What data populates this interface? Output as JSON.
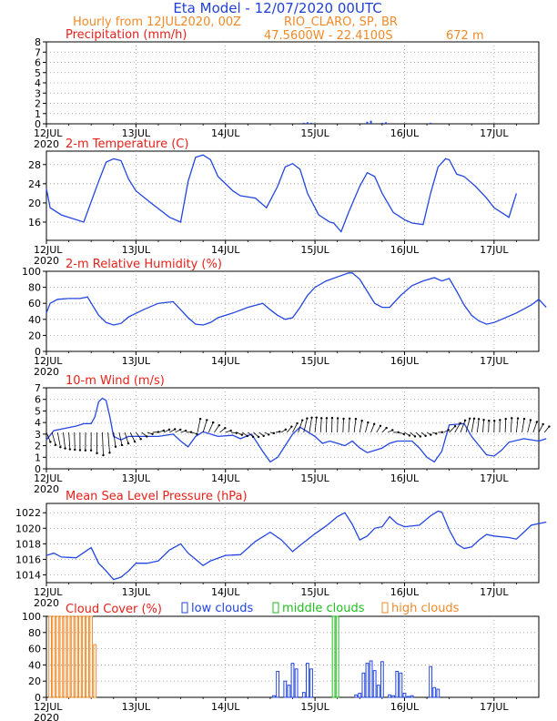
{
  "header": {
    "title": "Eta Model - 12/07/2020 00UTC",
    "subtitle_left": "Hourly from 12JUL2020, 00Z",
    "location": "RIO_CLARO, SP, BR",
    "coords": "47.5600W - 22.4100S",
    "altitude": "672  m"
  },
  "colors": {
    "title": "#1f3fd6",
    "orange": "#f08a28",
    "red": "#e8201a",
    "blue": "#2346e0",
    "green": "#1fbf1f",
    "black": "#000000",
    "grid": "#9a9a9a"
  },
  "x_axis": {
    "ticks": [
      "12JUL",
      "13JUL",
      "14JUL",
      "15JUL",
      "16JUL",
      "17JUL"
    ],
    "tick_hours": [
      0,
      24,
      48,
      72,
      96,
      120
    ],
    "range_hours": [
      0,
      132
    ],
    "year": "2020"
  },
  "chart_data": [
    {
      "id": "precip",
      "type": "bar",
      "title": "Precipitation (mm/h)",
      "ylim": [
        0,
        8
      ],
      "yticks": [
        0,
        1,
        2,
        3,
        4,
        5,
        6,
        7,
        8
      ],
      "hours": [
        69,
        70,
        71,
        86,
        87,
        90,
        91,
        103
      ],
      "values": [
        0.1,
        0.15,
        0.1,
        0.2,
        0.3,
        0.1,
        0.15,
        0.1
      ]
    },
    {
      "id": "temperature",
      "type": "line",
      "title": "2-m Temperature (C)",
      "ylim": [
        12.2,
        30.8
      ],
      "yticks": [
        16,
        20,
        24,
        28
      ],
      "points": [
        [
          0,
          23
        ],
        [
          1,
          19
        ],
        [
          4,
          17.5
        ],
        [
          10,
          16
        ],
        [
          14,
          24.5
        ],
        [
          16,
          28.5
        ],
        [
          18,
          29.2
        ],
        [
          20,
          28.8
        ],
        [
          22,
          25
        ],
        [
          24,
          22.5
        ],
        [
          28,
          20
        ],
        [
          33,
          17
        ],
        [
          36,
          16
        ],
        [
          38,
          24.5
        ],
        [
          40,
          29.5
        ],
        [
          42,
          30
        ],
        [
          44,
          29
        ],
        [
          46,
          25.5
        ],
        [
          50,
          22.5
        ],
        [
          52,
          21.5
        ],
        [
          56,
          21
        ],
        [
          59,
          19
        ],
        [
          62,
          23.5
        ],
        [
          64,
          27.5
        ],
        [
          66,
          28.2
        ],
        [
          68,
          27
        ],
        [
          70,
          22
        ],
        [
          73,
          17.5
        ],
        [
          76,
          16
        ],
        [
          77,
          15.8
        ],
        [
          79,
          14
        ],
        [
          81,
          18
        ],
        [
          84,
          23.5
        ],
        [
          86,
          26.3
        ],
        [
          88,
          25.5
        ],
        [
          90,
          22
        ],
        [
          93,
          18
        ],
        [
          96,
          16.5
        ],
        [
          98,
          15.8
        ],
        [
          101,
          15.5
        ],
        [
          103,
          22
        ],
        [
          105,
          27.5
        ],
        [
          107,
          29.2
        ],
        [
          108,
          29
        ],
        [
          110,
          26
        ],
        [
          112,
          25.5
        ],
        [
          115,
          23.5
        ],
        [
          118,
          21
        ],
        [
          120,
          19
        ],
        [
          124,
          17
        ],
        [
          126,
          22
        ]
      ]
    },
    {
      "id": "humidity",
      "type": "line",
      "title": "2-m Relative Humidity (%)",
      "ylim": [
        0,
        100
      ],
      "yticks": [
        0,
        20,
        40,
        60,
        80,
        100
      ],
      "points": [
        [
          0,
          48
        ],
        [
          1,
          60
        ],
        [
          3,
          65
        ],
        [
          6,
          66
        ],
        [
          9,
          66
        ],
        [
          11,
          68
        ],
        [
          14,
          45
        ],
        [
          16,
          36
        ],
        [
          18,
          33
        ],
        [
          20,
          35
        ],
        [
          22,
          43
        ],
        [
          26,
          52
        ],
        [
          30,
          60
        ],
        [
          34,
          62
        ],
        [
          36,
          52
        ],
        [
          38,
          42
        ],
        [
          40,
          34
        ],
        [
          42,
          33
        ],
        [
          44,
          36
        ],
        [
          46,
          42
        ],
        [
          50,
          48
        ],
        [
          54,
          55
        ],
        [
          58,
          60
        ],
        [
          60,
          52
        ],
        [
          62,
          45
        ],
        [
          64,
          40
        ],
        [
          66,
          42
        ],
        [
          68,
          55
        ],
        [
          70,
          70
        ],
        [
          72,
          80
        ],
        [
          75,
          88
        ],
        [
          78,
          93
        ],
        [
          81,
          98
        ],
        [
          82,
          98
        ],
        [
          84,
          90
        ],
        [
          86,
          75
        ],
        [
          88,
          60
        ],
        [
          90,
          55
        ],
        [
          92,
          55
        ],
        [
          95,
          70
        ],
        [
          98,
          82
        ],
        [
          101,
          88
        ],
        [
          104,
          92
        ],
        [
          106,
          88
        ],
        [
          108,
          91
        ],
        [
          110,
          75
        ],
        [
          112,
          58
        ],
        [
          114,
          45
        ],
        [
          116,
          38
        ],
        [
          118,
          34
        ],
        [
          120,
          36
        ],
        [
          122,
          40
        ],
        [
          126,
          48
        ],
        [
          130,
          58
        ],
        [
          132,
          65
        ],
        [
          134,
          55
        ]
      ]
    },
    {
      "id": "wind",
      "type": "line",
      "title": "10-m Wind (m/s)",
      "ylim": [
        0,
        7
      ],
      "yticks": [
        0,
        1,
        2,
        3,
        4,
        5,
        6,
        7
      ],
      "points": [
        [
          0,
          2.5
        ],
        [
          2,
          3.3
        ],
        [
          5,
          3.5
        ],
        [
          8,
          3.7
        ],
        [
          10,
          3.9
        ],
        [
          12,
          3.9
        ],
        [
          13,
          4.5
        ],
        [
          14,
          5.8
        ],
        [
          15,
          6.1
        ],
        [
          16,
          5.9
        ],
        [
          17,
          4.5
        ],
        [
          18,
          2.8
        ],
        [
          20,
          2.5
        ],
        [
          22,
          2.8
        ],
        [
          26,
          2.8
        ],
        [
          30,
          2.8
        ],
        [
          34,
          3
        ],
        [
          36,
          2.4
        ],
        [
          38,
          1.9
        ],
        [
          40,
          2.8
        ],
        [
          42,
          3.2
        ],
        [
          46,
          2.8
        ],
        [
          50,
          2.9
        ],
        [
          52,
          2.6
        ],
        [
          55,
          3
        ],
        [
          58,
          1.5
        ],
        [
          60,
          0.6
        ],
        [
          62,
          1
        ],
        [
          64,
          2
        ],
        [
          66,
          3
        ],
        [
          68,
          3.6
        ],
        [
          70,
          3.2
        ],
        [
          72,
          2.8
        ],
        [
          74,
          2.2
        ],
        [
          76,
          2.4
        ],
        [
          78,
          2.2
        ],
        [
          80,
          2
        ],
        [
          82,
          2.4
        ],
        [
          84,
          1.8
        ],
        [
          86,
          1.4
        ],
        [
          88,
          1.6
        ],
        [
          90,
          1.8
        ],
        [
          92,
          2.2
        ],
        [
          94,
          2.4
        ],
        [
          98,
          2.4
        ],
        [
          100,
          1.8
        ],
        [
          102,
          1
        ],
        [
          104,
          0.6
        ],
        [
          106,
          1.5
        ],
        [
          108,
          3.8
        ],
        [
          112,
          3.9
        ],
        [
          114,
          2.8
        ],
        [
          116,
          2
        ],
        [
          118,
          1.2
        ],
        [
          120,
          1.1
        ],
        [
          122,
          1.6
        ],
        [
          124,
          2.3
        ],
        [
          128,
          2.6
        ],
        [
          132,
          2.4
        ],
        [
          134,
          2.6
        ]
      ]
    },
    {
      "id": "pressure",
      "type": "line",
      "title": "Mean Sea Level Pressure (hPa)",
      "ylim": [
        1013,
        1023.2
      ],
      "yticks": [
        1014,
        1016,
        1018,
        1020,
        1022
      ],
      "points": [
        [
          0,
          1016.5
        ],
        [
          2,
          1016.8
        ],
        [
          4,
          1016.3
        ],
        [
          8,
          1016.2
        ],
        [
          11,
          1017.2
        ],
        [
          12,
          1017.5
        ],
        [
          14,
          1015.5
        ],
        [
          16,
          1014.5
        ],
        [
          18,
          1013.4
        ],
        [
          20,
          1013.7
        ],
        [
          22,
          1014.5
        ],
        [
          24,
          1015.5
        ],
        [
          27,
          1015.5
        ],
        [
          30,
          1015.8
        ],
        [
          33,
          1017.2
        ],
        [
          36,
          1018
        ],
        [
          38,
          1016.8
        ],
        [
          40,
          1016
        ],
        [
          42,
          1015.2
        ],
        [
          44,
          1015.8
        ],
        [
          48,
          1016.5
        ],
        [
          52,
          1016.6
        ],
        [
          56,
          1018.3
        ],
        [
          60,
          1019.5
        ],
        [
          63,
          1018.5
        ],
        [
          66,
          1017
        ],
        [
          68,
          1017.8
        ],
        [
          72,
          1019.3
        ],
        [
          75,
          1020.3
        ],
        [
          78,
          1021.5
        ],
        [
          80,
          1022
        ],
        [
          82,
          1020.5
        ],
        [
          84,
          1018.5
        ],
        [
          86,
          1019
        ],
        [
          88,
          1020
        ],
        [
          90,
          1020.2
        ],
        [
          92,
          1021.5
        ],
        [
          94,
          1020.6
        ],
        [
          96,
          1020.2
        ],
        [
          100,
          1020.4
        ],
        [
          103,
          1021.6
        ],
        [
          105,
          1022.2
        ],
        [
          106,
          1022.1
        ],
        [
          108,
          1019.8
        ],
        [
          110,
          1018
        ],
        [
          112,
          1017.4
        ],
        [
          114,
          1017.6
        ],
        [
          116,
          1018.5
        ],
        [
          118,
          1019.2
        ],
        [
          120,
          1019
        ],
        [
          124,
          1018.8
        ],
        [
          126,
          1018.6
        ],
        [
          130,
          1020.4
        ],
        [
          134,
          1020.8
        ]
      ]
    },
    {
      "id": "cloud",
      "type": "bar",
      "title": "Cloud Cover (%)",
      "ylim": [
        0,
        100
      ],
      "yticks": [
        0,
        20,
        40,
        60,
        80,
        100
      ],
      "legend": [
        "low clouds",
        "middle clouds",
        "high clouds"
      ],
      "series": [
        {
          "name": "low clouds",
          "hours": [
            61,
            62,
            64,
            65,
            66,
            67,
            69,
            70,
            71,
            83,
            84,
            85,
            86,
            87,
            88,
            89,
            90,
            92,
            93,
            94,
            95,
            96,
            97,
            98,
            103,
            104,
            105
          ],
          "values": [
            2,
            32,
            20,
            15,
            42,
            35,
            6,
            42,
            35,
            3,
            5,
            30,
            42,
            45,
            33,
            15,
            44,
            3,
            2,
            32,
            30,
            5,
            1,
            2,
            38,
            12,
            10
          ]
        },
        {
          "name": "middle clouds",
          "hours": [
            77,
            78
          ],
          "values": [
            100,
            100
          ]
        },
        {
          "name": "high clouds",
          "hours": [
            1,
            2,
            3,
            4,
            5,
            6,
            7,
            8,
            9,
            10,
            11,
            12,
            13
          ],
          "values": [
            100,
            100,
            100,
            100,
            100,
            100,
            100,
            100,
            100,
            100,
            100,
            100,
            65
          ]
        }
      ]
    }
  ]
}
